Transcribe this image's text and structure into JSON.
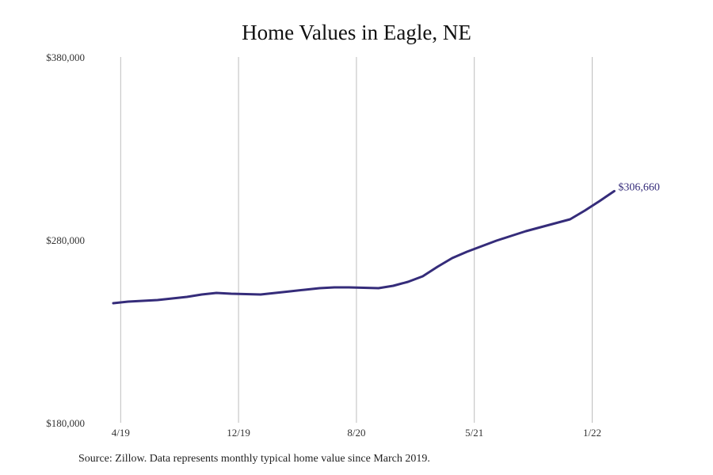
{
  "chart_data": {
    "type": "line",
    "title": "Home Values in Eagle, NE",
    "xlabel": "",
    "ylabel": "",
    "ylim": [
      180000,
      380000
    ],
    "yticks": [
      180000,
      280000,
      380000
    ],
    "ytick_labels": [
      "$180,000",
      "$280,000",
      "$380,000"
    ],
    "xtick_labels": [
      "4/19",
      "12/19",
      "8/20",
      "5/21",
      "1/22"
    ],
    "grid": "vertical lines at x ticks",
    "line_color": "#352c7a",
    "x": [
      "3/19",
      "4/19",
      "5/19",
      "6/19",
      "7/19",
      "8/19",
      "9/19",
      "10/19",
      "11/19",
      "12/19",
      "1/20",
      "2/20",
      "3/20",
      "4/20",
      "5/20",
      "6/20",
      "7/20",
      "8/20",
      "9/20",
      "10/20",
      "11/20",
      "12/20",
      "1/21",
      "2/21",
      "3/21",
      "4/21",
      "5/21",
      "6/21",
      "7/21",
      "8/21",
      "9/21",
      "10/21",
      "11/21",
      "12/21",
      "1/22"
    ],
    "values": [
      245370,
      246230,
      246670,
      247100,
      247960,
      248830,
      250130,
      251000,
      250560,
      250350,
      250130,
      251000,
      251860,
      252730,
      253590,
      254030,
      254030,
      253810,
      253590,
      254900,
      257060,
      260090,
      265280,
      270040,
      273510,
      276540,
      279570,
      282160,
      284760,
      286930,
      289090,
      291250,
      296020,
      301210,
      306660
    ],
    "end_label": "$306,660"
  },
  "source": "Source: Zillow. Data represents monthly typical home value since March 2019."
}
